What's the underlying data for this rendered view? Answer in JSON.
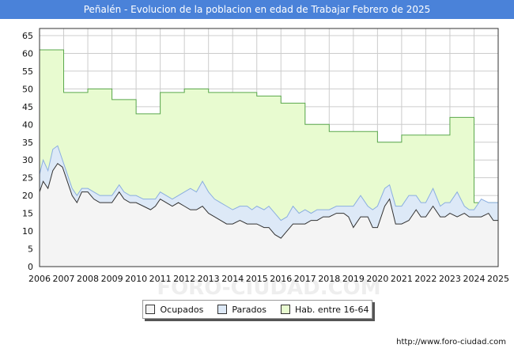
{
  "title": "Peñalén - Evolucion de la poblacion en edad de Trabajar Febrero de 2025",
  "source": "http://www.foro-ciudad.com",
  "watermark": "FORO-CIUDAD.COM",
  "colors": {
    "title_bg": "#4a82d9",
    "ocupados_fill": "#f4f4f4",
    "ocupados_line": "#333333",
    "parados_fill": "#dde9f7",
    "parados_line": "#8aaee0",
    "hab_fill": "#e8fbd0",
    "hab_line": "#5aa84c",
    "grid": "#cccccc"
  },
  "chart_data": {
    "type": "area",
    "title": "Peñalén - Evolucion de la poblacion en edad de Trabajar Febrero de 2025",
    "xlabel": "",
    "ylabel": "",
    "xlim": [
      2006,
      2025
    ],
    "ylim": [
      0,
      67
    ],
    "x_ticks": [
      "2006",
      "2007",
      "2008",
      "2009",
      "2010",
      "2011",
      "2012",
      "2013",
      "2014",
      "2015",
      "2016",
      "2017",
      "2018",
      "2019",
      "2020",
      "2021",
      "2022",
      "2023",
      "2024",
      "2025"
    ],
    "y_ticks": [
      0,
      5,
      10,
      15,
      20,
      25,
      30,
      35,
      40,
      45,
      50,
      55,
      60,
      65
    ],
    "grid": true,
    "legend": [
      {
        "key": "ocupados",
        "label": "Ocupados"
      },
      {
        "key": "parados",
        "label": "Parados"
      },
      {
        "key": "hab",
        "label": "Hab. entre 16-64"
      }
    ],
    "series": [
      {
        "key": "hab",
        "name": "Hab. entre 16-64",
        "step": true,
        "points": [
          [
            2006,
            61
          ],
          [
            2007,
            49
          ],
          [
            2008,
            50
          ],
          [
            2009,
            47
          ],
          [
            2010,
            43
          ],
          [
            2011,
            49
          ],
          [
            2012,
            50
          ],
          [
            2013,
            49
          ],
          [
            2014,
            49
          ],
          [
            2015,
            48
          ],
          [
            2016,
            46
          ],
          [
            2017,
            40
          ],
          [
            2018,
            38
          ],
          [
            2019,
            38
          ],
          [
            2020,
            35
          ],
          [
            2021,
            37
          ],
          [
            2022,
            37
          ],
          [
            2023,
            42
          ],
          [
            2024,
            18
          ],
          [
            2025,
            18
          ]
        ]
      },
      {
        "key": "parados_total",
        "name": "Parados",
        "points": [
          [
            2006.0,
            26
          ],
          [
            2006.15,
            30
          ],
          [
            2006.35,
            27
          ],
          [
            2006.55,
            33
          ],
          [
            2006.75,
            34
          ],
          [
            2006.95,
            30
          ],
          [
            2007.15,
            26
          ],
          [
            2007.35,
            22
          ],
          [
            2007.55,
            20
          ],
          [
            2007.75,
            22
          ],
          [
            2008.0,
            22
          ],
          [
            2008.25,
            21
          ],
          [
            2008.5,
            20
          ],
          [
            2008.75,
            20
          ],
          [
            2009.0,
            20
          ],
          [
            2009.3,
            23
          ],
          [
            2009.5,
            21
          ],
          [
            2009.75,
            20
          ],
          [
            2010.0,
            20
          ],
          [
            2010.3,
            19
          ],
          [
            2010.6,
            19
          ],
          [
            2010.8,
            19
          ],
          [
            2011.0,
            21
          ],
          [
            2011.25,
            20
          ],
          [
            2011.5,
            19
          ],
          [
            2011.75,
            20
          ],
          [
            2012.0,
            21
          ],
          [
            2012.25,
            22
          ],
          [
            2012.5,
            21
          ],
          [
            2012.75,
            24
          ],
          [
            2013.0,
            21
          ],
          [
            2013.25,
            19
          ],
          [
            2013.5,
            18
          ],
          [
            2013.75,
            17
          ],
          [
            2014.0,
            16
          ],
          [
            2014.3,
            17
          ],
          [
            2014.6,
            17
          ],
          [
            2014.8,
            16
          ],
          [
            2015.0,
            17
          ],
          [
            2015.3,
            16
          ],
          [
            2015.5,
            17
          ],
          [
            2015.75,
            15
          ],
          [
            2016.0,
            13
          ],
          [
            2016.25,
            14
          ],
          [
            2016.5,
            17
          ],
          [
            2016.75,
            15
          ],
          [
            2017.0,
            16
          ],
          [
            2017.25,
            15
          ],
          [
            2017.5,
            16
          ],
          [
            2017.75,
            16
          ],
          [
            2018.0,
            16
          ],
          [
            2018.3,
            17
          ],
          [
            2018.6,
            17
          ],
          [
            2018.8,
            17
          ],
          [
            2019.0,
            17
          ],
          [
            2019.3,
            20
          ],
          [
            2019.6,
            17
          ],
          [
            2019.8,
            16
          ],
          [
            2020.0,
            17
          ],
          [
            2020.3,
            22
          ],
          [
            2020.5,
            23
          ],
          [
            2020.75,
            17
          ],
          [
            2021.0,
            17
          ],
          [
            2021.3,
            20
          ],
          [
            2021.6,
            20
          ],
          [
            2021.8,
            18
          ],
          [
            2022.0,
            18
          ],
          [
            2022.3,
            22
          ],
          [
            2022.6,
            17
          ],
          [
            2022.8,
            18
          ],
          [
            2023.0,
            18
          ],
          [
            2023.3,
            21
          ],
          [
            2023.6,
            17
          ],
          [
            2023.8,
            16
          ],
          [
            2024.0,
            16
          ],
          [
            2024.3,
            19
          ],
          [
            2024.6,
            18
          ],
          [
            2024.8,
            18
          ],
          [
            2025.0,
            18
          ]
        ]
      },
      {
        "key": "ocupados",
        "name": "Ocupados",
        "points": [
          [
            2006.0,
            21
          ],
          [
            2006.15,
            24
          ],
          [
            2006.35,
            22
          ],
          [
            2006.55,
            27
          ],
          [
            2006.75,
            29
          ],
          [
            2006.95,
            28
          ],
          [
            2007.15,
            24
          ],
          [
            2007.35,
            20
          ],
          [
            2007.55,
            18
          ],
          [
            2007.75,
            21
          ],
          [
            2008.0,
            21
          ],
          [
            2008.25,
            19
          ],
          [
            2008.5,
            18
          ],
          [
            2008.75,
            18
          ],
          [
            2009.0,
            18
          ],
          [
            2009.3,
            21
          ],
          [
            2009.5,
            19
          ],
          [
            2009.75,
            18
          ],
          [
            2010.0,
            18
          ],
          [
            2010.3,
            17
          ],
          [
            2010.6,
            16
          ],
          [
            2010.8,
            17
          ],
          [
            2011.0,
            19
          ],
          [
            2011.25,
            18
          ],
          [
            2011.5,
            17
          ],
          [
            2011.75,
            18
          ],
          [
            2012.0,
            17
          ],
          [
            2012.25,
            16
          ],
          [
            2012.5,
            16
          ],
          [
            2012.75,
            17
          ],
          [
            2013.0,
            15
          ],
          [
            2013.25,
            14
          ],
          [
            2013.5,
            13
          ],
          [
            2013.75,
            12
          ],
          [
            2014.0,
            12
          ],
          [
            2014.3,
            13
          ],
          [
            2014.6,
            12
          ],
          [
            2014.8,
            12
          ],
          [
            2015.0,
            12
          ],
          [
            2015.3,
            11
          ],
          [
            2015.5,
            11
          ],
          [
            2015.75,
            9
          ],
          [
            2016.0,
            8
          ],
          [
            2016.25,
            10
          ],
          [
            2016.5,
            12
          ],
          [
            2016.75,
            12
          ],
          [
            2017.0,
            12
          ],
          [
            2017.25,
            13
          ],
          [
            2017.5,
            13
          ],
          [
            2017.75,
            14
          ],
          [
            2018.0,
            14
          ],
          [
            2018.3,
            15
          ],
          [
            2018.6,
            15
          ],
          [
            2018.8,
            14
          ],
          [
            2019.0,
            11
          ],
          [
            2019.3,
            14
          ],
          [
            2019.6,
            14
          ],
          [
            2019.8,
            11
          ],
          [
            2020.0,
            11
          ],
          [
            2020.3,
            17
          ],
          [
            2020.5,
            19
          ],
          [
            2020.75,
            12
          ],
          [
            2021.0,
            12
          ],
          [
            2021.3,
            13
          ],
          [
            2021.6,
            16
          ],
          [
            2021.8,
            14
          ],
          [
            2022.0,
            14
          ],
          [
            2022.3,
            17
          ],
          [
            2022.6,
            14
          ],
          [
            2022.8,
            14
          ],
          [
            2023.0,
            15
          ],
          [
            2023.3,
            14
          ],
          [
            2023.6,
            15
          ],
          [
            2023.8,
            14
          ],
          [
            2024.0,
            14
          ],
          [
            2024.3,
            14
          ],
          [
            2024.6,
            15
          ],
          [
            2024.8,
            13
          ],
          [
            2025.0,
            13
          ]
        ]
      }
    ]
  }
}
